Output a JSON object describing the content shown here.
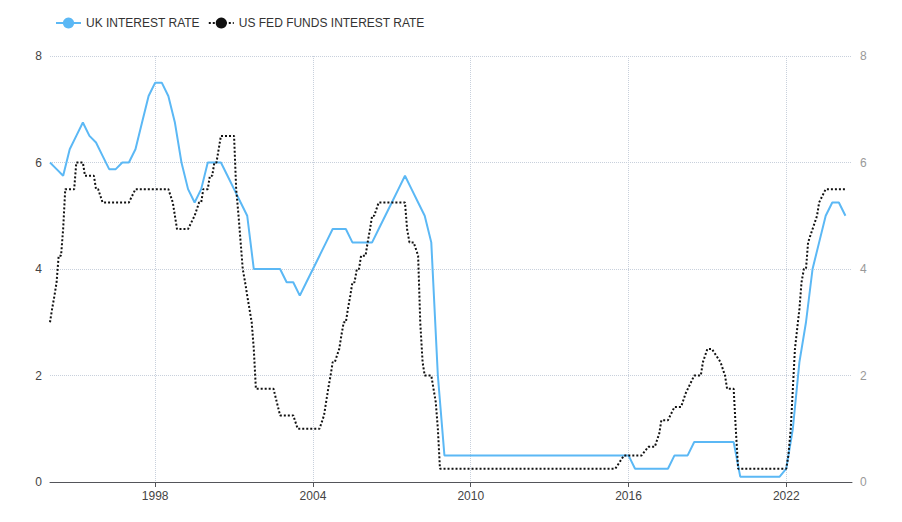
{
  "chart_data": {
    "type": "line",
    "xlim": [
      1994.0,
      2024.5
    ],
    "xticks": [
      1998,
      2004,
      2010,
      2016,
      2022
    ],
    "ylim": [
      0,
      8
    ],
    "yticks": [
      0,
      2,
      4,
      6,
      8
    ],
    "y2lim": [
      0,
      8
    ],
    "y2ticks": [
      0,
      2,
      4,
      6,
      8
    ],
    "grid": true,
    "legend": "upper left",
    "series": [
      {
        "name": "UK INTEREST RATE",
        "color": "#5BB8F5",
        "line_style": "solid",
        "x": [
          1994.0,
          1994.25,
          1994.5,
          1994.75,
          1995.0,
          1995.25,
          1995.5,
          1995.75,
          1996.0,
          1996.25,
          1996.5,
          1996.75,
          1997.0,
          1997.25,
          1997.5,
          1997.75,
          1998.0,
          1998.25,
          1998.5,
          1998.75,
          1999.0,
          1999.25,
          1999.5,
          1999.75,
          2000.0,
          2000.25,
          2000.5,
          2000.75,
          2001.0,
          2001.25,
          2001.5,
          2001.75,
          2002.0,
          2002.25,
          2002.5,
          2002.75,
          2003.0,
          2003.25,
          2003.5,
          2003.75,
          2004.0,
          2004.25,
          2004.5,
          2004.75,
          2005.0,
          2005.25,
          2005.5,
          2005.75,
          2006.0,
          2006.25,
          2006.5,
          2006.75,
          2007.0,
          2007.25,
          2007.5,
          2007.75,
          2008.0,
          2008.25,
          2008.5,
          2008.75,
          2009.0,
          2009.25,
          2009.5,
          2009.75,
          2010.0,
          2010.25,
          2010.5,
          2010.75,
          2011.0,
          2011.25,
          2011.5,
          2011.75,
          2012.0,
          2012.25,
          2012.5,
          2012.75,
          2013.0,
          2013.25,
          2013.5,
          2013.75,
          2014.0,
          2014.25,
          2014.5,
          2014.75,
          2015.0,
          2015.25,
          2015.5,
          2015.75,
          2016.0,
          2016.25,
          2016.5,
          2016.75,
          2017.0,
          2017.25,
          2017.5,
          2017.75,
          2018.0,
          2018.25,
          2018.5,
          2018.75,
          2019.0,
          2019.25,
          2019.5,
          2019.75,
          2020.0,
          2020.25,
          2020.5,
          2020.75,
          2021.0,
          2021.25,
          2021.5,
          2021.75,
          2022.0,
          2022.25,
          2022.5,
          2022.75,
          2023.0,
          2023.25,
          2023.5,
          2023.75,
          2024.0,
          2024.25
        ],
        "values": [
          6.0,
          5.875,
          5.75,
          6.25,
          6.5,
          6.75,
          6.5,
          6.375,
          6.125,
          5.875,
          5.875,
          6.0,
          6.0,
          6.25,
          6.75,
          7.25,
          7.5,
          7.5,
          7.25,
          6.75,
          6.0,
          5.5,
          5.25,
          5.5,
          6.0,
          6.0,
          6.0,
          5.75,
          5.5,
          5.25,
          5.0,
          4.0,
          4.0,
          4.0,
          4.0,
          4.0,
          3.75,
          3.75,
          3.5,
          3.75,
          4.0,
          4.25,
          4.5,
          4.75,
          4.75,
          4.75,
          4.5,
          4.5,
          4.5,
          4.5,
          4.75,
          5.0,
          5.25,
          5.5,
          5.75,
          5.5,
          5.25,
          5.0,
          4.5,
          2.0,
          0.5,
          0.5,
          0.5,
          0.5,
          0.5,
          0.5,
          0.5,
          0.5,
          0.5,
          0.5,
          0.5,
          0.5,
          0.5,
          0.5,
          0.5,
          0.5,
          0.5,
          0.5,
          0.5,
          0.5,
          0.5,
          0.5,
          0.5,
          0.5,
          0.5,
          0.5,
          0.5,
          0.5,
          0.5,
          0.25,
          0.25,
          0.25,
          0.25,
          0.25,
          0.25,
          0.5,
          0.5,
          0.5,
          0.75,
          0.75,
          0.75,
          0.75,
          0.75,
          0.75,
          0.75,
          0.1,
          0.1,
          0.1,
          0.1,
          0.1,
          0.1,
          0.1,
          0.25,
          1.0,
          2.25,
          3.0,
          4.0,
          4.5,
          5.0,
          5.25,
          5.25,
          5.0
        ]
      },
      {
        "name": "US FED FUNDS INTEREST RATE",
        "color": "#111111",
        "line_style": "dotted",
        "x": [
          1994.0,
          1994.08,
          1994.17,
          1994.25,
          1994.33,
          1994.42,
          1994.5,
          1994.58,
          1994.67,
          1994.75,
          1994.83,
          1994.92,
          1995.0,
          1995.08,
          1995.17,
          1995.25,
          1995.33,
          1995.5,
          1995.67,
          1995.75,
          1995.83,
          1996.0,
          1996.25,
          1996.5,
          1996.75,
          1997.0,
          1997.25,
          1997.5,
          1997.75,
          1998.0,
          1998.25,
          1998.5,
          1998.67,
          1998.75,
          1998.83,
          1999.0,
          1999.25,
          1999.5,
          1999.67,
          1999.75,
          1999.83,
          2000.0,
          2000.08,
          2000.17,
          2000.25,
          2000.33,
          2000.5,
          2000.58,
          2000.75,
          2001.0,
          2001.08,
          2001.17,
          2001.25,
          2001.33,
          2001.42,
          2001.5,
          2001.67,
          2001.75,
          2001.83,
          2002.0,
          2002.25,
          2002.5,
          2002.75,
          2003.0,
          2003.25,
          2003.42,
          2003.5,
          2003.75,
          2004.0,
          2004.25,
          2004.42,
          2004.5,
          2004.58,
          2004.67,
          2004.75,
          2004.83,
          2005.0,
          2005.08,
          2005.17,
          2005.25,
          2005.33,
          2005.42,
          2005.5,
          2005.58,
          2005.67,
          2005.75,
          2005.83,
          2006.0,
          2006.08,
          2006.17,
          2006.25,
          2006.33,
          2006.5,
          2006.58,
          2006.75,
          2006.83,
          2007.0,
          2007.25,
          2007.5,
          2007.58,
          2007.67,
          2007.75,
          2007.83,
          2008.0,
          2008.08,
          2008.17,
          2008.25,
          2008.33,
          2008.5,
          2008.67,
          2008.75,
          2008.83,
          2009.0,
          2009.25,
          2009.5,
          2009.75,
          2010.0,
          2010.25,
          2010.5,
          2010.75,
          2011.0,
          2011.25,
          2011.5,
          2011.75,
          2012.0,
          2012.25,
          2012.5,
          2012.75,
          2013.0,
          2013.25,
          2013.5,
          2013.75,
          2014.0,
          2014.25,
          2014.5,
          2014.75,
          2015.0,
          2015.25,
          2015.5,
          2015.83,
          2016.0,
          2016.25,
          2016.5,
          2016.75,
          2017.0,
          2017.17,
          2017.25,
          2017.5,
          2017.75,
          2018.0,
          2018.17,
          2018.5,
          2018.75,
          2018.83,
          2019.0,
          2019.17,
          2019.5,
          2019.67,
          2019.75,
          2020.0,
          2020.08,
          2020.17,
          2020.25,
          2020.5,
          2020.75,
          2021.0,
          2021.25,
          2021.5,
          2021.75,
          2022.0,
          2022.08,
          2022.17,
          2022.25,
          2022.33,
          2022.5,
          2022.58,
          2022.67,
          2022.75,
          2022.83,
          2023.0,
          2023.17,
          2023.25,
          2023.5,
          2023.75,
          2024.0,
          2024.25
        ],
        "values": [
          3.0,
          3.25,
          3.5,
          3.75,
          4.25,
          4.25,
          4.75,
          5.5,
          5.5,
          5.5,
          5.5,
          5.5,
          6.0,
          6.0,
          6.0,
          6.0,
          5.75,
          5.75,
          5.75,
          5.5,
          5.5,
          5.25,
          5.25,
          5.25,
          5.25,
          5.25,
          5.5,
          5.5,
          5.5,
          5.5,
          5.5,
          5.5,
          5.25,
          5.0,
          4.75,
          4.75,
          4.75,
          5.0,
          5.25,
          5.25,
          5.5,
          5.5,
          5.75,
          5.75,
          6.0,
          6.0,
          6.5,
          6.5,
          6.5,
          6.5,
          5.5,
          5.0,
          4.5,
          4.0,
          3.75,
          3.5,
          3.0,
          2.5,
          1.75,
          1.75,
          1.75,
          1.75,
          1.25,
          1.25,
          1.25,
          1.0,
          1.0,
          1.0,
          1.0,
          1.0,
          1.25,
          1.5,
          1.75,
          2.0,
          2.25,
          2.25,
          2.5,
          2.75,
          3.0,
          3.0,
          3.25,
          3.5,
          3.75,
          3.75,
          4.0,
          4.0,
          4.25,
          4.25,
          4.5,
          4.75,
          5.0,
          5.0,
          5.25,
          5.25,
          5.25,
          5.25,
          5.25,
          5.25,
          5.25,
          4.75,
          4.5,
          4.5,
          4.5,
          4.25,
          3.0,
          2.25,
          2.0,
          2.0,
          2.0,
          1.5,
          1.0,
          0.25,
          0.25,
          0.25,
          0.25,
          0.25,
          0.25,
          0.25,
          0.25,
          0.25,
          0.25,
          0.25,
          0.25,
          0.25,
          0.25,
          0.25,
          0.25,
          0.25,
          0.25,
          0.25,
          0.25,
          0.25,
          0.25,
          0.25,
          0.25,
          0.25,
          0.25,
          0.25,
          0.25,
          0.5,
          0.5,
          0.5,
          0.5,
          0.66,
          0.66,
          0.91,
          1.16,
          1.16,
          1.41,
          1.41,
          1.66,
          2.0,
          2.0,
          2.25,
          2.5,
          2.5,
          2.25,
          2.0,
          1.75,
          1.75,
          1.0,
          0.25,
          0.25,
          0.25,
          0.25,
          0.25,
          0.25,
          0.25,
          0.25,
          0.25,
          0.5,
          1.0,
          1.75,
          2.5,
          3.25,
          3.75,
          4.0,
          4.0,
          4.5,
          4.75,
          5.0,
          5.25,
          5.5,
          5.5,
          5.5,
          5.5
        ]
      }
    ]
  }
}
